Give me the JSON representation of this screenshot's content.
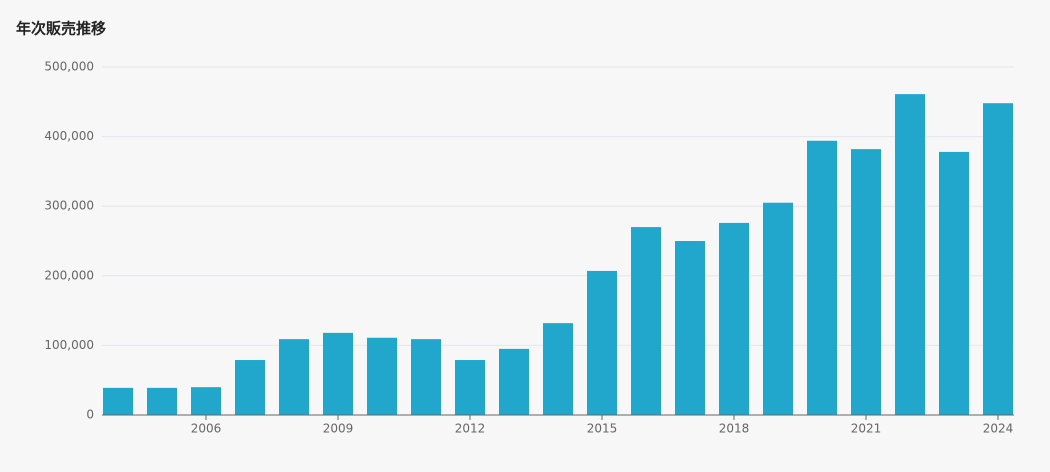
{
  "chart_data": {
    "type": "bar",
    "title": "年次販売推移",
    "categories": [
      null,
      null,
      "2006",
      null,
      null,
      "2009",
      null,
      null,
      "2012",
      null,
      null,
      "2015",
      null,
      null,
      "2018",
      null,
      null,
      "2021",
      null,
      null,
      "2024"
    ],
    "values": [
      39000,
      39000,
      40000,
      79000,
      109000,
      118000,
      111000,
      109000,
      79000,
      95000,
      132000,
      207000,
      270000,
      250000,
      276000,
      305000,
      394000,
      382000,
      461000,
      378000,
      448000
    ],
    "color": "#22a7cc",
    "ylim": [
      0,
      500000
    ],
    "yticks": [
      0,
      {
        "value": 100000,
        "label": "100,000"
      },
      {
        "value": 200000,
        "label": "200,000"
      },
      {
        "value": 300000,
        "label": "300,000"
      },
      {
        "value": 400000,
        "label": "400,000"
      },
      {
        "value": 500000,
        "label": "500,000"
      }
    ],
    "grid": true
  }
}
